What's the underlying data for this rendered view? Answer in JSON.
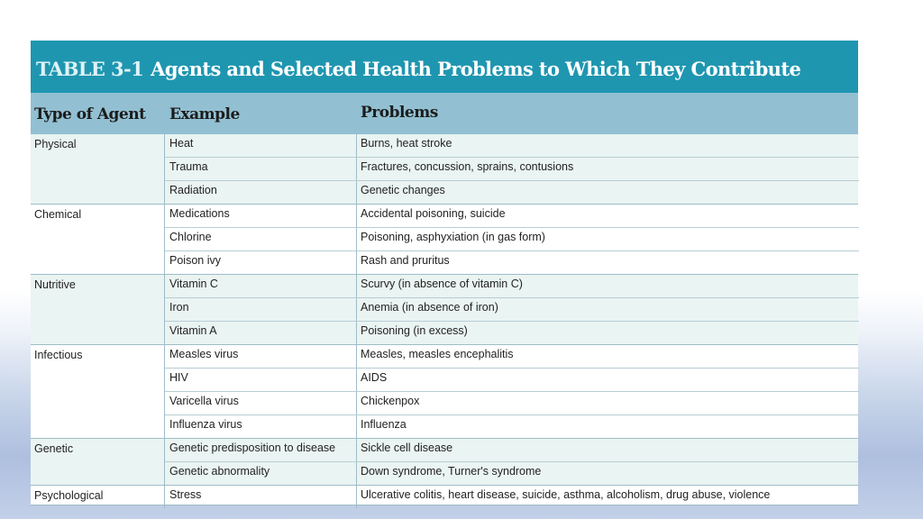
{
  "table": {
    "title_number": "TABLE 3-1",
    "title": "Agents and Selected Health Problems to Which They Contribute",
    "columns": [
      "Type of Agent",
      "Example",
      "Problems"
    ],
    "groups": [
      {
        "agent": "Physical",
        "rows": [
          {
            "example": "Heat",
            "problems": "Burns, heat stroke"
          },
          {
            "example": "Trauma",
            "problems": "Fractures, concussion, sprains, contusions"
          },
          {
            "example": "Radiation",
            "problems": "Genetic changes"
          }
        ]
      },
      {
        "agent": "Chemical",
        "rows": [
          {
            "example": "Medications",
            "problems": "Accidental poisoning, suicide"
          },
          {
            "example": "Chlorine",
            "problems": "Poisoning, asphyxiation (in gas form)"
          },
          {
            "example": "Poison ivy",
            "problems": "Rash and pruritus"
          }
        ]
      },
      {
        "agent": "Nutritive",
        "rows": [
          {
            "example": "Vitamin C",
            "problems": "Scurvy (in absence of vitamin C)"
          },
          {
            "example": "Iron",
            "problems": "Anemia (in absence of iron)"
          },
          {
            "example": "Vitamin A",
            "problems": "Poisoning (in excess)"
          }
        ]
      },
      {
        "agent": "Infectious",
        "rows": [
          {
            "example": "Measles virus",
            "problems": "Measles, measles encephalitis"
          },
          {
            "example": "HIV",
            "problems": "AIDS"
          },
          {
            "example": "Varicella virus",
            "problems": "Chickenpox"
          },
          {
            "example": "Influenza virus",
            "problems": "Influenza"
          }
        ]
      },
      {
        "agent": "Genetic",
        "rows": [
          {
            "example": "Genetic predisposition to disease",
            "problems": "Sickle cell disease"
          },
          {
            "example": "Genetic abnormality",
            "problems": "Down syndrome, Turner's syndrome"
          }
        ]
      },
      {
        "agent": "Psychological",
        "rows": [
          {
            "example": "Stress",
            "problems": "Ulcerative colitis, heart disease, suicide, asthma, alcoholism, drug abuse, violence"
          }
        ]
      }
    ]
  },
  "colors": {
    "title_bar": "#1f96b0",
    "header_row": "#92c0d2",
    "shaded_group": "#eaf4f2",
    "rule": "#9fbcc6"
  }
}
